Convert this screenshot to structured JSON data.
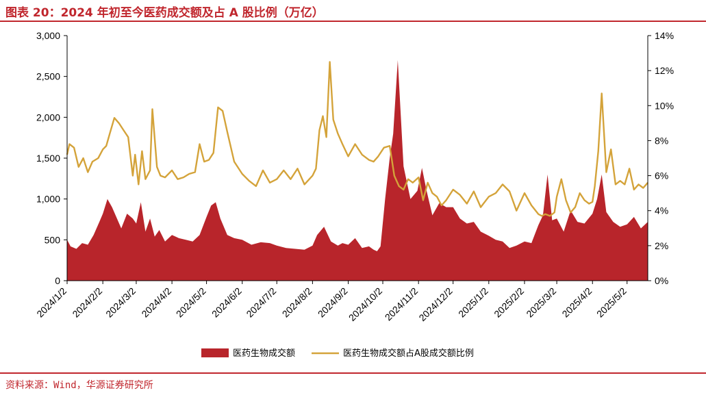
{
  "figure": {
    "title": "图表 20：2024 年初至今医药成交额及占 A 股比例（万亿）",
    "source": "资料来源：Wind，华源证券研究所"
  },
  "colors": {
    "accent": "#c0262d",
    "area": "#b8252b",
    "line": "#d4a33a",
    "axis": "#000000"
  },
  "chart_data": {
    "type": "area",
    "title": "",
    "xlabel": "",
    "ylabel": "",
    "grid": false,
    "legend_position": "bottom-center",
    "x_range": [
      "2024-01-02",
      "2025-05-20"
    ],
    "x_ticks": [
      "2024/1/2",
      "2024/2/2",
      "2024/3/2",
      "2024/4/2",
      "2024/5/2",
      "2024/6/2",
      "2024/7/2",
      "2024/8/2",
      "2024/9/2",
      "2024/10/2",
      "2024/11/2",
      "2024/12/2",
      "2025/1/2",
      "2025/2/2",
      "2025/3/2",
      "2025/4/2",
      "2025/5/2"
    ],
    "y_left": {
      "min": 0,
      "max": 3000,
      "ticks": [
        0,
        500,
        1000,
        1500,
        2000,
        2500,
        3000
      ],
      "tick_labels": [
        "0",
        "500",
        "1,000",
        "1,500",
        "2,000",
        "2,500",
        "3,000"
      ]
    },
    "y_right": {
      "min": 0,
      "max": 14,
      "ticks": [
        0,
        2,
        4,
        6,
        8,
        10,
        12,
        14
      ],
      "tick_labels": [
        "0%",
        "2%",
        "4%",
        "6%",
        "8%",
        "10%",
        "12%",
        "14%"
      ]
    },
    "series": [
      {
        "name": "医药生物成交额",
        "type": "area",
        "axis": "left",
        "x": [
          "2024-01-02",
          "2024-01-05",
          "2024-01-10",
          "2024-01-15",
          "2024-01-20",
          "2024-01-25",
          "2024-01-30",
          "2024-02-02",
          "2024-02-06",
          "2024-02-10",
          "2024-02-18",
          "2024-02-23",
          "2024-02-28",
          "2024-03-02",
          "2024-03-06",
          "2024-03-10",
          "2024-03-14",
          "2024-03-18",
          "2024-03-22",
          "2024-03-27",
          "2024-04-02",
          "2024-04-08",
          "2024-04-14",
          "2024-04-20",
          "2024-04-26",
          "2024-05-02",
          "2024-05-06",
          "2024-05-10",
          "2024-05-14",
          "2024-05-20",
          "2024-05-26",
          "2024-06-02",
          "2024-06-10",
          "2024-06-18",
          "2024-06-26",
          "2024-07-02",
          "2024-07-10",
          "2024-07-18",
          "2024-07-26",
          "2024-08-02",
          "2024-08-06",
          "2024-08-12",
          "2024-08-18",
          "2024-08-24",
          "2024-08-28",
          "2024-09-02",
          "2024-09-08",
          "2024-09-14",
          "2024-09-20",
          "2024-09-24",
          "2024-09-27",
          "2024-09-30",
          "2024-10-04",
          "2024-10-08",
          "2024-10-11",
          "2024-10-15",
          "2024-10-20",
          "2024-10-26",
          "2024-11-01",
          "2024-11-05",
          "2024-11-09",
          "2024-11-14",
          "2024-11-20",
          "2024-11-26",
          "2024-12-02",
          "2024-12-08",
          "2024-12-14",
          "2024-12-20",
          "2024-12-26",
          "2025-01-02",
          "2025-01-08",
          "2025-01-14",
          "2025-01-20",
          "2025-01-26",
          "2025-02-02",
          "2025-02-08",
          "2025-02-14",
          "2025-02-18",
          "2025-02-22",
          "2025-02-26",
          "2025-03-02",
          "2025-03-08",
          "2025-03-14",
          "2025-03-20",
          "2025-03-26",
          "2025-04-02",
          "2025-04-06",
          "2025-04-10",
          "2025-04-14",
          "2025-04-20",
          "2025-04-26",
          "2025-05-02",
          "2025-05-08",
          "2025-05-14",
          "2025-05-20"
        ],
        "values": [
          500,
          420,
          390,
          460,
          440,
          560,
          720,
          820,
          1000,
          900,
          640,
          820,
          760,
          700,
          960,
          600,
          760,
          540,
          620,
          480,
          560,
          520,
          500,
          480,
          560,
          780,
          920,
          960,
          760,
          560,
          520,
          500,
          440,
          470,
          460,
          430,
          400,
          390,
          380,
          430,
          560,
          660,
          480,
          430,
          460,
          440,
          520,
          400,
          420,
          380,
          360,
          420,
          1000,
          1500,
          1800,
          2700,
          1400,
          1000,
          1100,
          1380,
          1100,
          800,
          950,
          900,
          900,
          760,
          700,
          720,
          600,
          550,
          500,
          480,
          400,
          430,
          480,
          460,
          680,
          800,
          1300,
          740,
          760,
          600,
          860,
          720,
          700,
          820,
          1000,
          1300,
          840,
          720,
          660,
          690,
          780,
          640,
          720
        ]
      },
      {
        "name": "医药生物成交额占A股成交额比例",
        "type": "line",
        "axis": "right",
        "x": [
          "2024-01-02",
          "2024-01-04",
          "2024-01-08",
          "2024-01-12",
          "2024-01-16",
          "2024-01-20",
          "2024-01-24",
          "2024-01-29",
          "2024-02-02",
          "2024-02-05",
          "2024-02-08",
          "2024-02-12",
          "2024-02-16",
          "2024-02-20",
          "2024-02-24",
          "2024-02-28",
          "2024-03-01",
          "2024-03-04",
          "2024-03-07",
          "2024-03-10",
          "2024-03-14",
          "2024-03-16",
          "2024-03-20",
          "2024-03-23",
          "2024-03-27",
          "2024-04-02",
          "2024-04-07",
          "2024-04-12",
          "2024-04-17",
          "2024-04-22",
          "2024-04-26",
          "2024-04-30",
          "2024-05-04",
          "2024-05-08",
          "2024-05-12",
          "2024-05-16",
          "2024-05-20",
          "2024-05-26",
          "2024-06-02",
          "2024-06-08",
          "2024-06-14",
          "2024-06-20",
          "2024-06-26",
          "2024-07-02",
          "2024-07-08",
          "2024-07-14",
          "2024-07-20",
          "2024-07-26",
          "2024-08-02",
          "2024-08-05",
          "2024-08-08",
          "2024-08-11",
          "2024-08-14",
          "2024-08-17",
          "2024-08-20",
          "2024-08-24",
          "2024-08-28",
          "2024-09-02",
          "2024-09-08",
          "2024-09-14",
          "2024-09-20",
          "2024-09-24",
          "2024-09-28",
          "2024-10-03",
          "2024-10-08",
          "2024-10-12",
          "2024-10-16",
          "2024-10-20",
          "2024-10-24",
          "2024-10-28",
          "2024-11-02",
          "2024-11-06",
          "2024-11-10",
          "2024-11-14",
          "2024-11-18",
          "2024-11-22",
          "2024-11-26",
          "2024-12-02",
          "2024-12-08",
          "2024-12-14",
          "2024-12-20",
          "2024-12-26",
          "2025-01-02",
          "2025-01-08",
          "2025-01-14",
          "2025-01-20",
          "2025-01-26",
          "2025-02-02",
          "2025-02-08",
          "2025-02-14",
          "2025-02-17",
          "2025-02-20",
          "2025-02-24",
          "2025-02-28",
          "2025-03-02",
          "2025-03-06",
          "2025-03-10",
          "2025-03-14",
          "2025-03-18",
          "2025-03-22",
          "2025-03-26",
          "2025-03-30",
          "2025-04-02",
          "2025-04-04",
          "2025-04-07",
          "2025-04-10",
          "2025-04-14",
          "2025-04-18",
          "2025-04-22",
          "2025-04-26",
          "2025-04-30",
          "2025-05-04",
          "2025-05-08",
          "2025-05-12",
          "2025-05-16",
          "2025-05-20"
        ],
        "values": [
          7.2,
          7.8,
          7.6,
          6.5,
          7.0,
          6.2,
          6.8,
          7.0,
          7.5,
          7.7,
          8.4,
          9.3,
          9.0,
          8.6,
          8.2,
          6.0,
          7.2,
          5.5,
          7.4,
          5.8,
          6.3,
          9.8,
          6.5,
          6.0,
          5.9,
          6.3,
          5.8,
          5.9,
          6.1,
          6.2,
          7.8,
          6.8,
          6.9,
          7.3,
          9.9,
          9.7,
          8.5,
          6.8,
          6.1,
          5.7,
          5.4,
          6.3,
          5.6,
          5.8,
          6.3,
          5.8,
          6.4,
          5.5,
          6.0,
          6.4,
          8.6,
          9.4,
          8.2,
          12.5,
          9.2,
          8.4,
          7.8,
          7.1,
          7.8,
          7.2,
          6.9,
          6.8,
          7.1,
          7.6,
          7.7,
          6.0,
          5.4,
          5.2,
          5.8,
          5.6,
          5.9,
          4.6,
          5.6,
          5.0,
          4.8,
          4.3,
          4.6,
          5.2,
          4.9,
          4.4,
          5.1,
          4.2,
          4.8,
          5.0,
          5.5,
          5.1,
          4.0,
          5.0,
          4.3,
          3.8,
          3.7,
          3.8,
          3.7,
          3.9,
          4.8,
          5.8,
          4.6,
          3.9,
          4.2,
          5.0,
          4.6,
          4.4,
          4.5,
          5.4,
          7.4,
          10.7,
          6.2,
          7.5,
          5.5,
          5.7,
          5.5,
          6.4,
          5.2,
          5.5,
          5.3,
          5.6
        ]
      }
    ]
  }
}
